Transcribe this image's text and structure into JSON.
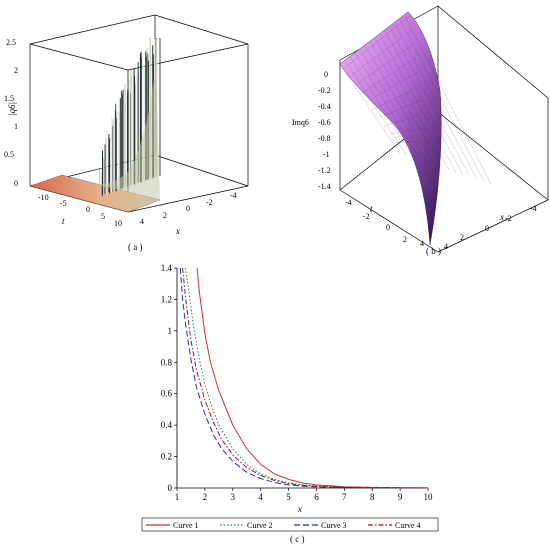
{
  "figure_captions": [
    "( a )",
    "( b )",
    "( c )"
  ],
  "panel_a": {
    "zlabel": "|q6|",
    "zticks": [
      "2.5",
      "2",
      "1.5",
      "1",
      "0.5",
      "0"
    ],
    "tlabel": "t",
    "tticks": [
      "-10",
      "-5",
      "0",
      "5",
      "10"
    ],
    "xlabel": "x",
    "xticks": [
      "4",
      "2",
      "0",
      "-2",
      "-4"
    ]
  },
  "panel_b": {
    "zlabel": "Imq6",
    "zticks": [
      "0",
      "-0.2",
      "-0.4",
      "-0.6",
      "-0.8",
      "-1",
      "-1.2",
      "-1.4"
    ],
    "tlabel": "t",
    "tticks": [
      "-4",
      "-2",
      "0",
      "2",
      "4"
    ],
    "xlabel": "x",
    "xticks": [
      "-4",
      "-2",
      "0",
      "2",
      "4"
    ]
  },
  "chart_data": [
    {
      "type": "surface",
      "panel": "a",
      "zlabel": "|q6|",
      "xlabel": "x",
      "tlabel": "t",
      "zlim": [
        0,
        2.5
      ],
      "xlim": [
        -4,
        4
      ],
      "tlim": [
        -10,
        10
      ],
      "colors": {
        "low": "#c86a4a",
        "high": "#b8bfa6"
      }
    },
    {
      "type": "surface",
      "panel": "b",
      "zlabel": "Imq6",
      "xlabel": "x",
      "tlabel": "t",
      "zlim": [
        -1.4,
        0
      ],
      "xlim": [
        -4,
        4
      ],
      "tlim": [
        -4,
        4
      ],
      "colors": {
        "high": "#e9a0ea",
        "low": "#3a1460"
      }
    },
    {
      "type": "line",
      "panel": "c",
      "xlabel": "x",
      "ylabel": "",
      "xlim": [
        1,
        10
      ],
      "ylim": [
        0,
        1.4
      ],
      "xticks": [
        1,
        2,
        3,
        4,
        5,
        6,
        7,
        8,
        9,
        10
      ],
      "yticks": [
        0,
        0.2,
        0.4,
        0.6,
        0.8,
        1,
        1.2,
        1.4
      ],
      "legend_position": "bottom",
      "series": [
        {
          "name": "Curve 1",
          "color": "#c0392b",
          "dash": "",
          "x": [
            1.72,
            1.8,
            2.0,
            2.2,
            2.5,
            3.0,
            3.5,
            4.0,
            4.5,
            5.0,
            5.5,
            6.0,
            7.0,
            8.0,
            9.0,
            10.0
          ],
          "y": [
            1.4,
            1.25,
            0.98,
            0.8,
            0.62,
            0.4,
            0.25,
            0.15,
            0.09,
            0.055,
            0.032,
            0.02,
            0.008,
            0.004,
            0.002,
            0.001
          ]
        },
        {
          "name": "Curve 2",
          "color": "#1a8a5a",
          "dash": "1.5,2",
          "x": [
            1.3,
            1.4,
            1.6,
            1.8,
            2.0,
            2.2,
            2.5,
            3.0,
            3.5,
            4.0,
            4.5,
            5.0,
            5.5,
            6.0,
            7.0,
            8.0,
            9.0,
            10.0
          ],
          "y": [
            1.4,
            1.28,
            1.02,
            0.82,
            0.66,
            0.54,
            0.4,
            0.25,
            0.15,
            0.09,
            0.055,
            0.033,
            0.02,
            0.012,
            0.005,
            0.002,
            0.001,
            0.0
          ]
        },
        {
          "name": "Curve 3",
          "color": "#1f2fb0",
          "dash": "6,3",
          "x": [
            1.12,
            1.2,
            1.3,
            1.5,
            1.7,
            2.0,
            2.3,
            2.6,
            3.0,
            3.5,
            4.0,
            4.5,
            5.0,
            5.5,
            6.0,
            7.0,
            8.0,
            9.0,
            10.0
          ],
          "y": [
            1.4,
            1.2,
            1.05,
            0.82,
            0.64,
            0.47,
            0.34,
            0.25,
            0.17,
            0.1,
            0.06,
            0.035,
            0.02,
            0.012,
            0.007,
            0.003,
            0.001,
            0.0,
            0.0
          ]
        },
        {
          "name": "Curve 4",
          "color": "#8b1a1a",
          "dash": "5,2,1.5,2",
          "x": [
            1.2,
            1.3,
            1.5,
            1.7,
            2.0,
            2.3,
            2.6,
            3.0,
            3.5,
            4.0,
            4.5,
            5.0,
            5.5,
            6.0,
            7.0,
            8.0,
            9.0,
            10.0
          ],
          "y": [
            1.4,
            1.22,
            0.94,
            0.75,
            0.56,
            0.42,
            0.31,
            0.21,
            0.13,
            0.08,
            0.048,
            0.028,
            0.017,
            0.01,
            0.004,
            0.002,
            0.001,
            0.0
          ]
        }
      ]
    }
  ]
}
